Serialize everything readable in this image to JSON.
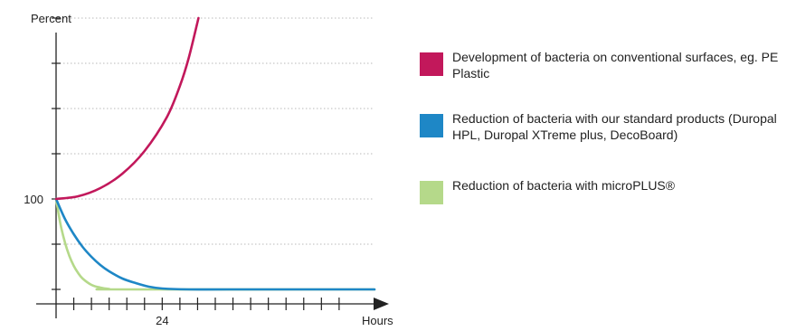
{
  "chart_data": {
    "type": "line",
    "ylabel": "Percent",
    "xlabel": "Hours",
    "x_ticks": [
      {
        "value": 24,
        "label": "24"
      }
    ],
    "y_ticks": [
      {
        "value": 100,
        "label": "100"
      }
    ],
    "xlim": [
      0,
      72
    ],
    "ylim": [
      0,
      300
    ],
    "grid": true,
    "legend_position": "right",
    "series": [
      {
        "name": "Development of bacteria on conventional surfaces, eg. PE Plastic",
        "color": "#c2185b",
        "x": [
          0,
          5,
          10,
          15,
          20,
          25,
          28,
          30,
          32.2
        ],
        "y": [
          100,
          103,
          112,
          128,
          153,
          190,
          225,
          256,
          300
        ]
      },
      {
        "name": "Reduction of bacteria with our standard products (Duropal HPL, Duropal XTreme plus, DecoBoard)",
        "color": "#1e87c6",
        "x": [
          0,
          2,
          4,
          6,
          8,
          10,
          12,
          15,
          18,
          21,
          24,
          30,
          40,
          72
        ],
        "y": [
          100,
          78,
          61,
          47,
          36,
          27,
          20,
          12,
          7,
          3,
          1,
          0,
          0,
          0
        ]
      },
      {
        "name": "Reduction of bacteria with microPLUS®",
        "color": "#b5d98a",
        "x": [
          0,
          1,
          2,
          3,
          4,
          5,
          6,
          8,
          10,
          12,
          14,
          72
        ],
        "y": [
          100,
          72,
          52,
          37,
          26,
          18,
          12,
          5,
          2,
          0.5,
          0,
          0
        ]
      }
    ]
  }
}
